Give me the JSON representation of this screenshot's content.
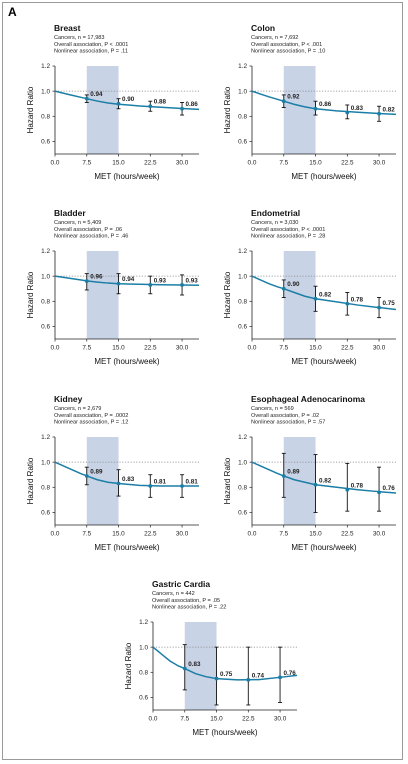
{
  "panel_label": "A",
  "colors": {
    "band": "#c9d3e6",
    "curve": "#1b7ea6",
    "point": "#1b7ea6",
    "errorbar": "#111111",
    "reference": "#888888"
  },
  "chart_data": [
    {
      "type": "line",
      "title": "Breast",
      "subtitle": [
        "Cancers, n = 17,983",
        "Overall association, P < .0001",
        "Nonlinear association, P = .11"
      ],
      "xlabel": "MET (hours/week)",
      "ylabel": "Hazard Ratio",
      "xlim": [
        0,
        34
      ],
      "ylim": [
        0.5,
        1.2
      ],
      "xticks": [
        "0.0",
        "7.5",
        "15.0",
        "22.5",
        "30.0"
      ],
      "yticks": [
        "0.6",
        "0.8",
        "1.0",
        "1.2"
      ],
      "reference_line": 1.0,
      "shaded_band": [
        7.5,
        15.0
      ],
      "curve": {
        "x": [
          0,
          2,
          4,
          6,
          7.5,
          10,
          12.5,
          15,
          20,
          25,
          30,
          34
        ],
        "y": [
          1.0,
          0.983,
          0.967,
          0.952,
          0.94,
          0.921,
          0.906,
          0.896,
          0.882,
          0.872,
          0.862,
          0.855
        ]
      },
      "points": [
        {
          "x": 7.5,
          "y": 0.94,
          "lo": 0.91,
          "hi": 0.97,
          "label": "0.94"
        },
        {
          "x": 15,
          "y": 0.9,
          "lo": 0.86,
          "hi": 0.94,
          "label": "0.90"
        },
        {
          "x": 22.5,
          "y": 0.88,
          "lo": 0.84,
          "hi": 0.92,
          "label": "0.88"
        },
        {
          "x": 30,
          "y": 0.86,
          "lo": 0.81,
          "hi": 0.91,
          "label": "0.86"
        }
      ]
    },
    {
      "type": "line",
      "title": "Colon",
      "subtitle": [
        "Cancers, n = 7,692",
        "Overall association, P < .001",
        "Nonlinear association, P = .10"
      ],
      "xlabel": "MET (hours/week)",
      "ylabel": "Hazard Ratio",
      "xlim": [
        0,
        34
      ],
      "ylim": [
        0.5,
        1.2
      ],
      "xticks": [
        "0.0",
        "7.5",
        "15.0",
        "22.5",
        "30.0"
      ],
      "yticks": [
        "0.6",
        "0.8",
        "1.0",
        "1.2"
      ],
      "reference_line": 1.0,
      "shaded_band": [
        7.5,
        15.0
      ],
      "curve": {
        "x": [
          0,
          2,
          4,
          6,
          7.5,
          10,
          12.5,
          15,
          20,
          25,
          30,
          34
        ],
        "y": [
          1.0,
          0.977,
          0.955,
          0.935,
          0.92,
          0.895,
          0.875,
          0.86,
          0.843,
          0.832,
          0.822,
          0.815
        ]
      },
      "points": [
        {
          "x": 7.5,
          "y": 0.92,
          "lo": 0.87,
          "hi": 0.97,
          "label": "0.92"
        },
        {
          "x": 15,
          "y": 0.86,
          "lo": 0.81,
          "hi": 0.92,
          "label": "0.86"
        },
        {
          "x": 22.5,
          "y": 0.83,
          "lo": 0.78,
          "hi": 0.89,
          "label": "0.83"
        },
        {
          "x": 30,
          "y": 0.82,
          "lo": 0.76,
          "hi": 0.88,
          "label": "0.82"
        }
      ]
    },
    {
      "type": "line",
      "title": "Bladder",
      "subtitle": [
        "Cancers, n = 5,409",
        "Overall association, P = .06",
        "Nonlinear association, P = .46"
      ],
      "xlabel": "MET (hours/week)",
      "ylabel": "Hazard Ratio",
      "xlim": [
        0,
        34
      ],
      "ylim": [
        0.5,
        1.2
      ],
      "xticks": [
        "0.0",
        "7.5",
        "15.0",
        "22.5",
        "30.0"
      ],
      "yticks": [
        "0.6",
        "0.8",
        "1.0",
        "1.2"
      ],
      "reference_line": 1.0,
      "shaded_band": [
        7.5,
        15.0
      ],
      "curve": {
        "x": [
          0,
          2,
          4,
          6,
          7.5,
          10,
          12.5,
          15,
          20,
          25,
          30,
          34
        ],
        "y": [
          1.0,
          0.99,
          0.98,
          0.97,
          0.962,
          0.952,
          0.945,
          0.94,
          0.935,
          0.932,
          0.93,
          0.928
        ]
      },
      "points": [
        {
          "x": 7.5,
          "y": 0.96,
          "lo": 0.89,
          "hi": 1.02,
          "label": "0.96"
        },
        {
          "x": 15,
          "y": 0.94,
          "lo": 0.86,
          "hi": 1.02,
          "label": "0.94"
        },
        {
          "x": 22.5,
          "y": 0.93,
          "lo": 0.86,
          "hi": 1.0,
          "label": "0.93"
        },
        {
          "x": 30,
          "y": 0.93,
          "lo": 0.85,
          "hi": 1.01,
          "label": "0.93"
        }
      ]
    },
    {
      "type": "line",
      "title": "Endometrial",
      "subtitle": [
        "Cancers, n = 3,030",
        "Overall association, P < .0001",
        "Nonlinear association, P = .28"
      ],
      "xlabel": "MET (hours/week)",
      "ylabel": "Hazard Ratio",
      "xlim": [
        0,
        34
      ],
      "ylim": [
        0.5,
        1.2
      ],
      "xticks": [
        "0.0",
        "7.5",
        "15.0",
        "22.5",
        "30.0"
      ],
      "yticks": [
        "0.6",
        "0.8",
        "1.0",
        "1.2"
      ],
      "reference_line": 1.0,
      "shaded_band": [
        7.5,
        15.0
      ],
      "curve": {
        "x": [
          0,
          2,
          4,
          6,
          7.5,
          10,
          12.5,
          15,
          20,
          25,
          30,
          34
        ],
        "y": [
          1.0,
          0.97,
          0.94,
          0.915,
          0.9,
          0.87,
          0.84,
          0.82,
          0.795,
          0.77,
          0.75,
          0.735
        ]
      },
      "points": [
        {
          "x": 7.5,
          "y": 0.9,
          "lo": 0.83,
          "hi": 0.97,
          "label": "0.90"
        },
        {
          "x": 15,
          "y": 0.82,
          "lo": 0.72,
          "hi": 0.92,
          "label": "0.82"
        },
        {
          "x": 22.5,
          "y": 0.78,
          "lo": 0.69,
          "hi": 0.87,
          "label": "0.78"
        },
        {
          "x": 30,
          "y": 0.75,
          "lo": 0.67,
          "hi": 0.83,
          "label": "0.75"
        }
      ]
    },
    {
      "type": "line",
      "title": "Kidney",
      "subtitle": [
        "Cancers, n = 2,679",
        "Overall association, P = .0002",
        "Nonlinear association, P = .12"
      ],
      "xlabel": "MET (hours/week)",
      "ylabel": "Hazard Ratio",
      "xlim": [
        0,
        34
      ],
      "ylim": [
        0.5,
        1.2
      ],
      "xticks": [
        "0.0",
        "7.5",
        "15.0",
        "22.5",
        "30.0"
      ],
      "yticks": [
        "0.6",
        "0.8",
        "1.0",
        "1.2"
      ],
      "reference_line": 1.0,
      "shaded_band": [
        7.5,
        15.0
      ],
      "curve": {
        "x": [
          0,
          2,
          4,
          6,
          7.5,
          10,
          12.5,
          15,
          20,
          25,
          30,
          34
        ],
        "y": [
          1.0,
          0.97,
          0.94,
          0.91,
          0.89,
          0.86,
          0.84,
          0.83,
          0.815,
          0.81,
          0.81,
          0.81
        ]
      },
      "points": [
        {
          "x": 7.5,
          "y": 0.89,
          "lo": 0.82,
          "hi": 0.96,
          "label": "0.89"
        },
        {
          "x": 15,
          "y": 0.83,
          "lo": 0.73,
          "hi": 0.94,
          "label": "0.83"
        },
        {
          "x": 22.5,
          "y": 0.81,
          "lo": 0.72,
          "hi": 0.9,
          "label": "0.81"
        },
        {
          "x": 30,
          "y": 0.81,
          "lo": 0.72,
          "hi": 0.9,
          "label": "0.81"
        }
      ]
    },
    {
      "type": "line",
      "title": "Esophageal Adenocarinoma",
      "subtitle": [
        "Cancers, n = 569",
        "Overall association, P = .02",
        "Nonlinear association, P = .57"
      ],
      "xlabel": "MET (hours/week)",
      "ylabel": "Hazard Ratio",
      "xlim": [
        0,
        34
      ],
      "ylim": [
        0.5,
        1.2
      ],
      "xticks": [
        "0.0",
        "7.5",
        "15.0",
        "22.5",
        "30.0"
      ],
      "yticks": [
        "0.6",
        "0.8",
        "1.0",
        "1.2"
      ],
      "reference_line": 1.0,
      "shaded_band": [
        7.5,
        15.0
      ],
      "curve": {
        "x": [
          0,
          2,
          4,
          6,
          7.5,
          10,
          12.5,
          15,
          20,
          25,
          30,
          34
        ],
        "y": [
          1.0,
          0.97,
          0.94,
          0.91,
          0.89,
          0.86,
          0.84,
          0.82,
          0.8,
          0.78,
          0.765,
          0.755
        ]
      },
      "points": [
        {
          "x": 7.5,
          "y": 0.89,
          "lo": 0.72,
          "hi": 1.07,
          "label": "0.89"
        },
        {
          "x": 15,
          "y": 0.82,
          "lo": 0.6,
          "hi": 1.06,
          "label": "0.82"
        },
        {
          "x": 22.5,
          "y": 0.78,
          "lo": 0.61,
          "hi": 0.99,
          "label": "0.78"
        },
        {
          "x": 30,
          "y": 0.76,
          "lo": 0.61,
          "hi": 0.96,
          "label": "0.76"
        }
      ]
    },
    {
      "type": "line",
      "title": "Gastric Cardia",
      "subtitle": [
        "Cancers, n = 442",
        "Overall association, P = .05",
        "Nonlinear association, P = .22"
      ],
      "xlabel": "MET (hours/week)",
      "ylabel": "Hazard Ratio",
      "xlim": [
        0,
        34
      ],
      "ylim": [
        0.5,
        1.2
      ],
      "xticks": [
        "0.0",
        "7.5",
        "15.0",
        "22.5",
        "30.0"
      ],
      "yticks": [
        "0.6",
        "0.8",
        "1.0",
        "1.2"
      ],
      "reference_line": 1.0,
      "shaded_band": [
        7.5,
        15.0
      ],
      "curve": {
        "x": [
          0,
          2,
          4,
          6,
          7.5,
          10,
          12.5,
          15,
          20,
          25,
          30,
          34
        ],
        "y": [
          1.0,
          0.945,
          0.89,
          0.85,
          0.83,
          0.79,
          0.765,
          0.75,
          0.74,
          0.742,
          0.76,
          0.775
        ]
      },
      "points": [
        {
          "x": 7.5,
          "y": 0.83,
          "lo": 0.66,
          "hi": 1.02,
          "label": "0.83"
        },
        {
          "x": 15,
          "y": 0.75,
          "lo": 0.54,
          "hi": 1.0,
          "label": "0.75"
        },
        {
          "x": 22.5,
          "y": 0.74,
          "lo": 0.54,
          "hi": 1.0,
          "label": "0.74"
        },
        {
          "x": 30,
          "y": 0.76,
          "lo": 0.56,
          "hi": 1.0,
          "label": "0.76"
        }
      ]
    }
  ]
}
